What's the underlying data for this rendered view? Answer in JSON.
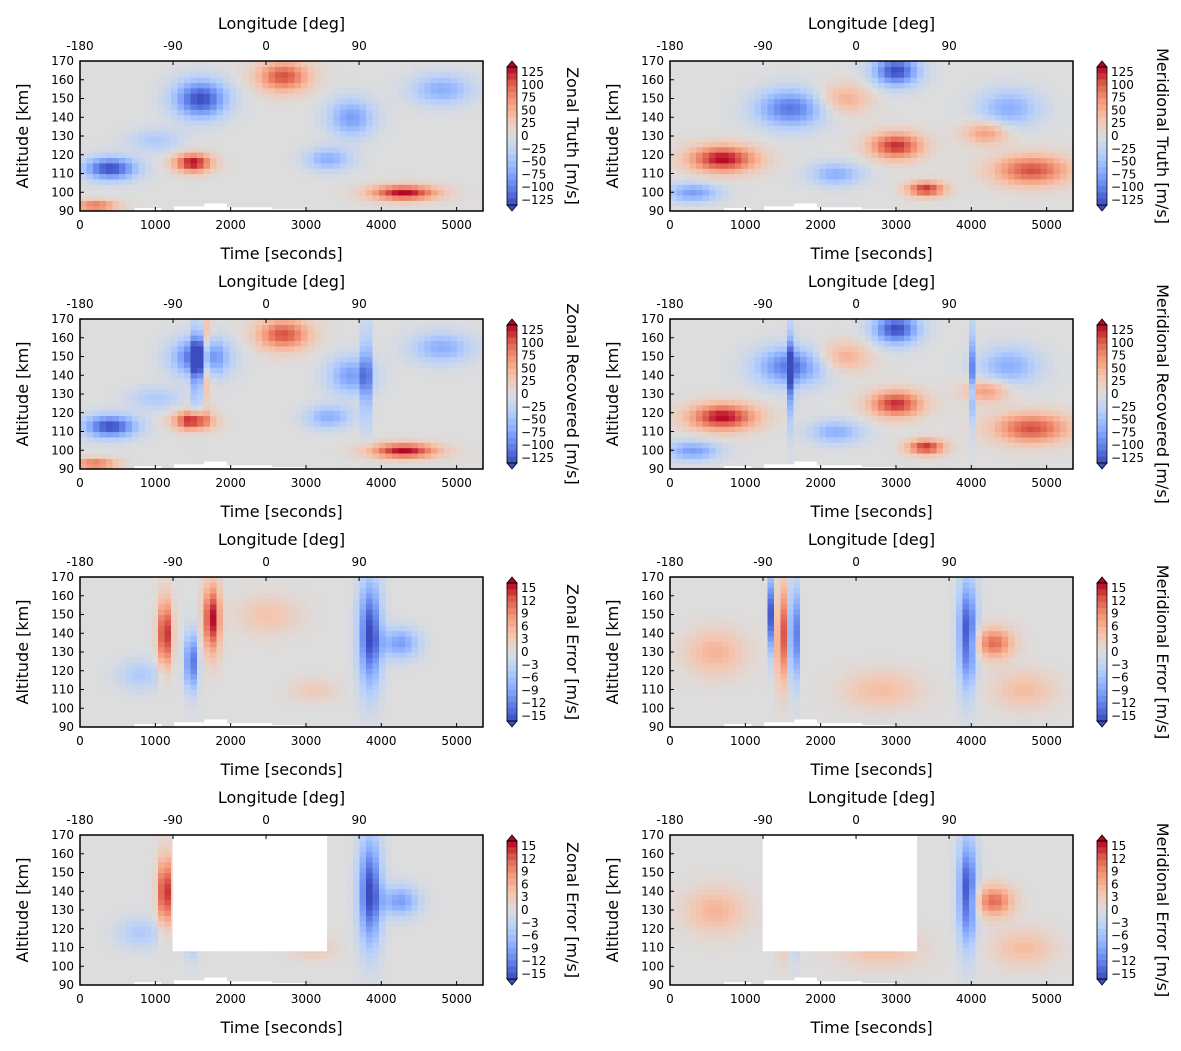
{
  "chart_data": [
    {
      "type": "heatmap",
      "id": "zonal-truth",
      "xlabel": "Time [seconds]",
      "ylabel": "Altitude [km]",
      "top_xlabel": "Longitude [deg]",
      "colorbar_label": "Zonal Truth [m/s]",
      "xlim": [
        0,
        5350
      ],
      "ylim": [
        90,
        170
      ],
      "xticks": [
        "0",
        "1000",
        "2000",
        "3000",
        "4000",
        "5000"
      ],
      "yticks": [
        "90",
        "100",
        "110",
        "120",
        "130",
        "140",
        "150",
        "160",
        "170"
      ],
      "top_xticks": [
        "-180",
        "-90",
        "0",
        "90"
      ],
      "cbar_ticks": [
        "125",
        "100",
        "75",
        "50",
        "25",
        "0",
        "−25",
        "−50",
        "−75",
        "−100",
        "−125"
      ],
      "cbar_range": [
        -125,
        125
      ],
      "blobs": [
        [
          1600,
          150,
          350,
          10,
          -1.0
        ],
        [
          2700,
          162,
          350,
          8,
          0.8
        ],
        [
          400,
          113,
          350,
          6,
          -1.0
        ],
        [
          1500,
          116,
          250,
          5,
          1.0
        ],
        [
          4300,
          100,
          450,
          4,
          1.0
        ],
        [
          200,
          93,
          300,
          3,
          0.7
        ],
        [
          3600,
          140,
          300,
          10,
          -0.6
        ],
        [
          3300,
          118,
          300,
          6,
          -0.5
        ],
        [
          4800,
          155,
          400,
          8,
          -0.5
        ],
        [
          1000,
          128,
          350,
          6,
          -0.3
        ]
      ]
    },
    {
      "type": "heatmap",
      "id": "meridional-truth",
      "xlabel": "Time [seconds]",
      "ylabel": "Altitude [km]",
      "top_xlabel": "Longitude [deg]",
      "colorbar_label": "Meridional Truth [m/s]",
      "xlim": [
        0,
        5350
      ],
      "ylim": [
        90,
        170
      ],
      "xticks": [
        "0",
        "1000",
        "2000",
        "3000",
        "4000",
        "5000"
      ],
      "yticks": [
        "90",
        "100",
        "110",
        "120",
        "130",
        "140",
        "150",
        "160",
        "170"
      ],
      "top_xticks": [
        "-180",
        "-90",
        "0",
        "90"
      ],
      "cbar_ticks": [
        "125",
        "100",
        "75",
        "50",
        "25",
        "0",
        "−25",
        "−50",
        "−75",
        "−100",
        "−125"
      ],
      "cbar_range": [
        -125,
        125
      ],
      "blobs": [
        [
          700,
          118,
          450,
          7,
          1.0
        ],
        [
          3000,
          125,
          350,
          7,
          0.9
        ],
        [
          4800,
          112,
          500,
          8,
          0.8
        ],
        [
          3400,
          102,
          250,
          4,
          0.9
        ],
        [
          1600,
          145,
          450,
          10,
          -0.8
        ],
        [
          3000,
          165,
          300,
          8,
          -1.0
        ],
        [
          300,
          100,
          350,
          5,
          -0.6
        ],
        [
          2200,
          110,
          350,
          6,
          -0.5
        ],
        [
          4500,
          145,
          400,
          10,
          -0.5
        ],
        [
          4200,
          132,
          300,
          6,
          0.5
        ],
        [
          2300,
          150,
          350,
          8,
          0.4
        ]
      ]
    },
    {
      "type": "heatmap",
      "id": "zonal-recovered",
      "xlabel": "Time [seconds]",
      "ylabel": "Altitude [km]",
      "top_xlabel": "Longitude [deg]",
      "colorbar_label": "Zonal Recovered [m/s]",
      "xlim": [
        0,
        5350
      ],
      "ylim": [
        90,
        170
      ],
      "xticks": [
        "0",
        "1000",
        "2000",
        "3000",
        "4000",
        "5000"
      ],
      "yticks": [
        "90",
        "100",
        "110",
        "120",
        "130",
        "140",
        "150",
        "160",
        "170"
      ],
      "top_xticks": [
        "-180",
        "-90",
        "0",
        "90"
      ],
      "cbar_ticks": [
        "125",
        "100",
        "75",
        "50",
        "25",
        "0",
        "−25",
        "−50",
        "−75",
        "−100",
        "−125"
      ],
      "cbar_range": [
        -125,
        125
      ],
      "blobs": [
        [
          1600,
          150,
          350,
          10,
          -1.0
        ],
        [
          2700,
          162,
          350,
          8,
          0.8
        ],
        [
          400,
          113,
          350,
          6,
          -1.0
        ],
        [
          1500,
          116,
          250,
          5,
          1.0
        ],
        [
          4300,
          100,
          450,
          4,
          1.0
        ],
        [
          200,
          93,
          300,
          3,
          0.7
        ],
        [
          3600,
          140,
          300,
          10,
          -0.6
        ],
        [
          3300,
          118,
          300,
          6,
          -0.5
        ],
        [
          4800,
          155,
          400,
          8,
          -0.5
        ],
        [
          1000,
          128,
          350,
          6,
          -0.3
        ],
        [
          1550,
          145,
          50,
          25,
          -0.8
        ],
        [
          3800,
          140,
          60,
          25,
          -0.7
        ],
        [
          1700,
          150,
          60,
          20,
          0.6
        ]
      ]
    },
    {
      "type": "heatmap",
      "id": "meridional-recovered",
      "xlabel": "Time [seconds]",
      "ylabel": "Altitude [km]",
      "top_xlabel": "Longitude [deg]",
      "colorbar_label": "Meridional Recovered [m/s]",
      "xlim": [
        0,
        5350
      ],
      "ylim": [
        90,
        170
      ],
      "xticks": [
        "0",
        "1000",
        "2000",
        "3000",
        "4000",
        "5000"
      ],
      "yticks": [
        "90",
        "100",
        "110",
        "120",
        "130",
        "140",
        "150",
        "160",
        "170"
      ],
      "top_xticks": [
        "-180",
        "-90",
        "0",
        "90"
      ],
      "cbar_ticks": [
        "125",
        "100",
        "75",
        "50",
        "25",
        "0",
        "−25",
        "−50",
        "−75",
        "−100",
        "−125"
      ],
      "cbar_range": [
        -125,
        125
      ],
      "blobs": [
        [
          700,
          118,
          450,
          7,
          1.0
        ],
        [
          3000,
          125,
          350,
          7,
          0.9
        ],
        [
          4800,
          112,
          500,
          8,
          0.8
        ],
        [
          3400,
          102,
          250,
          4,
          0.9
        ],
        [
          1600,
          145,
          450,
          10,
          -0.8
        ],
        [
          3000,
          165,
          300,
          8,
          -1.0
        ],
        [
          300,
          100,
          350,
          5,
          -0.6
        ],
        [
          2200,
          110,
          350,
          6,
          -0.5
        ],
        [
          4500,
          145,
          400,
          10,
          -0.5
        ],
        [
          4200,
          132,
          300,
          6,
          0.5
        ],
        [
          2300,
          150,
          350,
          8,
          0.4
        ],
        [
          1620,
          140,
          40,
          25,
          -1.0
        ],
        [
          4000,
          140,
          40,
          25,
          -0.7
        ]
      ]
    },
    {
      "type": "heatmap",
      "id": "zonal-error",
      "xlabel": "Time [seconds]",
      "ylabel": "Altitude [km]",
      "top_xlabel": "Longitude [deg]",
      "colorbar_label": "Zonal Error [m/s]",
      "xlim": [
        0,
        5350
      ],
      "ylim": [
        90,
        170
      ],
      "xticks": [
        "0",
        "1000",
        "2000",
        "3000",
        "4000",
        "5000"
      ],
      "yticks": [
        "90",
        "100",
        "110",
        "120",
        "130",
        "140",
        "150",
        "160",
        "170"
      ],
      "top_xticks": [
        "-180",
        "-90",
        "0",
        "90"
      ],
      "cbar_ticks": [
        "15",
        "12",
        "9",
        "6",
        "3",
        "0",
        "−3",
        "−6",
        "−9",
        "−12",
        "−15"
      ],
      "cbar_range": [
        -15,
        15
      ],
      "blobs": [
        [
          1130,
          140,
          90,
          18,
          1.0
        ],
        [
          1750,
          148,
          110,
          18,
          1.0
        ],
        [
          1480,
          125,
          80,
          15,
          -0.9
        ],
        [
          3850,
          140,
          150,
          28,
          -1.0
        ],
        [
          4250,
          135,
          250,
          8,
          -0.6
        ],
        [
          800,
          118,
          300,
          8,
          -0.3
        ],
        [
          2500,
          150,
          400,
          10,
          0.25
        ],
        [
          3100,
          110,
          300,
          6,
          0.2
        ]
      ]
    },
    {
      "type": "heatmap",
      "id": "meridional-error",
      "xlabel": "Time [seconds]",
      "ylabel": "Altitude [km]",
      "top_xlabel": "Longitude [deg]",
      "colorbar_label": "Meridional Error [m/s]",
      "xlim": [
        0,
        5350
      ],
      "ylim": [
        90,
        170
      ],
      "xticks": [
        "0",
        "1000",
        "2000",
        "3000",
        "4000",
        "5000"
      ],
      "yticks": [
        "90",
        "100",
        "110",
        "120",
        "130",
        "140",
        "150",
        "160",
        "170"
      ],
      "top_xticks": [
        "-180",
        "-90",
        "0",
        "90"
      ],
      "cbar_ticks": [
        "15",
        "12",
        "9",
        "6",
        "3",
        "0",
        "−3",
        "−6",
        "−9",
        "−12",
        "−15"
      ],
      "cbar_range": [
        -15,
        15
      ],
      "blobs": [
        [
          1350,
          150,
          50,
          20,
          -1.0
        ],
        [
          1480,
          140,
          60,
          25,
          1.0
        ],
        [
          1650,
          140,
          60,
          25,
          -1.0
        ],
        [
          3950,
          140,
          120,
          28,
          -1.0
        ],
        [
          4300,
          135,
          250,
          8,
          0.7
        ],
        [
          600,
          130,
          400,
          12,
          0.35
        ],
        [
          2800,
          110,
          500,
          10,
          0.3
        ],
        [
          4700,
          110,
          400,
          10,
          0.3
        ]
      ]
    },
    {
      "type": "heatmap",
      "id": "zonal-error-masked",
      "xlabel": "Time [seconds]",
      "ylabel": "Altitude [km]",
      "top_xlabel": "Longitude [deg]",
      "colorbar_label": "Zonal Error [m/s]",
      "xlim": [
        0,
        5350
      ],
      "ylim": [
        90,
        170
      ],
      "xticks": [
        "0",
        "1000",
        "2000",
        "3000",
        "4000",
        "5000"
      ],
      "yticks": [
        "90",
        "100",
        "110",
        "120",
        "130",
        "140",
        "150",
        "160",
        "170"
      ],
      "top_xticks": [
        "-180",
        "-90",
        "0",
        "90"
      ],
      "cbar_ticks": [
        "15",
        "12",
        "9",
        "6",
        "3",
        "0",
        "−3",
        "−6",
        "−9",
        "−12",
        "−15"
      ],
      "cbar_range": [
        -15,
        15
      ],
      "mask": [
        1230,
        3280,
        108,
        170
      ],
      "blobs": [
        [
          1130,
          140,
          90,
          18,
          1.0
        ],
        [
          1750,
          148,
          110,
          18,
          1.0
        ],
        [
          1480,
          125,
          80,
          15,
          -0.9
        ],
        [
          3850,
          140,
          150,
          28,
          -1.0
        ],
        [
          4250,
          135,
          250,
          8,
          -0.6
        ],
        [
          800,
          118,
          300,
          8,
          -0.3
        ],
        [
          2500,
          150,
          400,
          10,
          0.25
        ],
        [
          3100,
          110,
          300,
          6,
          0.2
        ]
      ]
    },
    {
      "type": "heatmap",
      "id": "meridional-error-masked",
      "xlabel": "Time [seconds]",
      "ylabel": "Altitude [km]",
      "top_xlabel": "Longitude [deg]",
      "colorbar_label": "Meridional Error [m/s]",
      "xlim": [
        0,
        5350
      ],
      "ylim": [
        90,
        170
      ],
      "xticks": [
        "0",
        "1000",
        "2000",
        "3000",
        "4000",
        "5000"
      ],
      "yticks": [
        "90",
        "100",
        "110",
        "120",
        "130",
        "140",
        "150",
        "160",
        "170"
      ],
      "top_xticks": [
        "-180",
        "-90",
        "0",
        "90"
      ],
      "cbar_ticks": [
        "15",
        "12",
        "9",
        "6",
        "3",
        "0",
        "−3",
        "−6",
        "−9",
        "−12",
        "−15"
      ],
      "cbar_range": [
        -15,
        15
      ],
      "mask": [
        1230,
        3280,
        108,
        170
      ],
      "blobs": [
        [
          1350,
          150,
          50,
          20,
          -1.0
        ],
        [
          1480,
          140,
          60,
          25,
          1.0
        ],
        [
          1650,
          140,
          60,
          25,
          -1.0
        ],
        [
          3950,
          140,
          120,
          28,
          -1.0
        ],
        [
          4300,
          135,
          250,
          8,
          0.7
        ],
        [
          600,
          130,
          400,
          12,
          0.35
        ],
        [
          2800,
          110,
          500,
          10,
          0.3
        ],
        [
          4700,
          110,
          400,
          10,
          0.3
        ]
      ]
    }
  ]
}
